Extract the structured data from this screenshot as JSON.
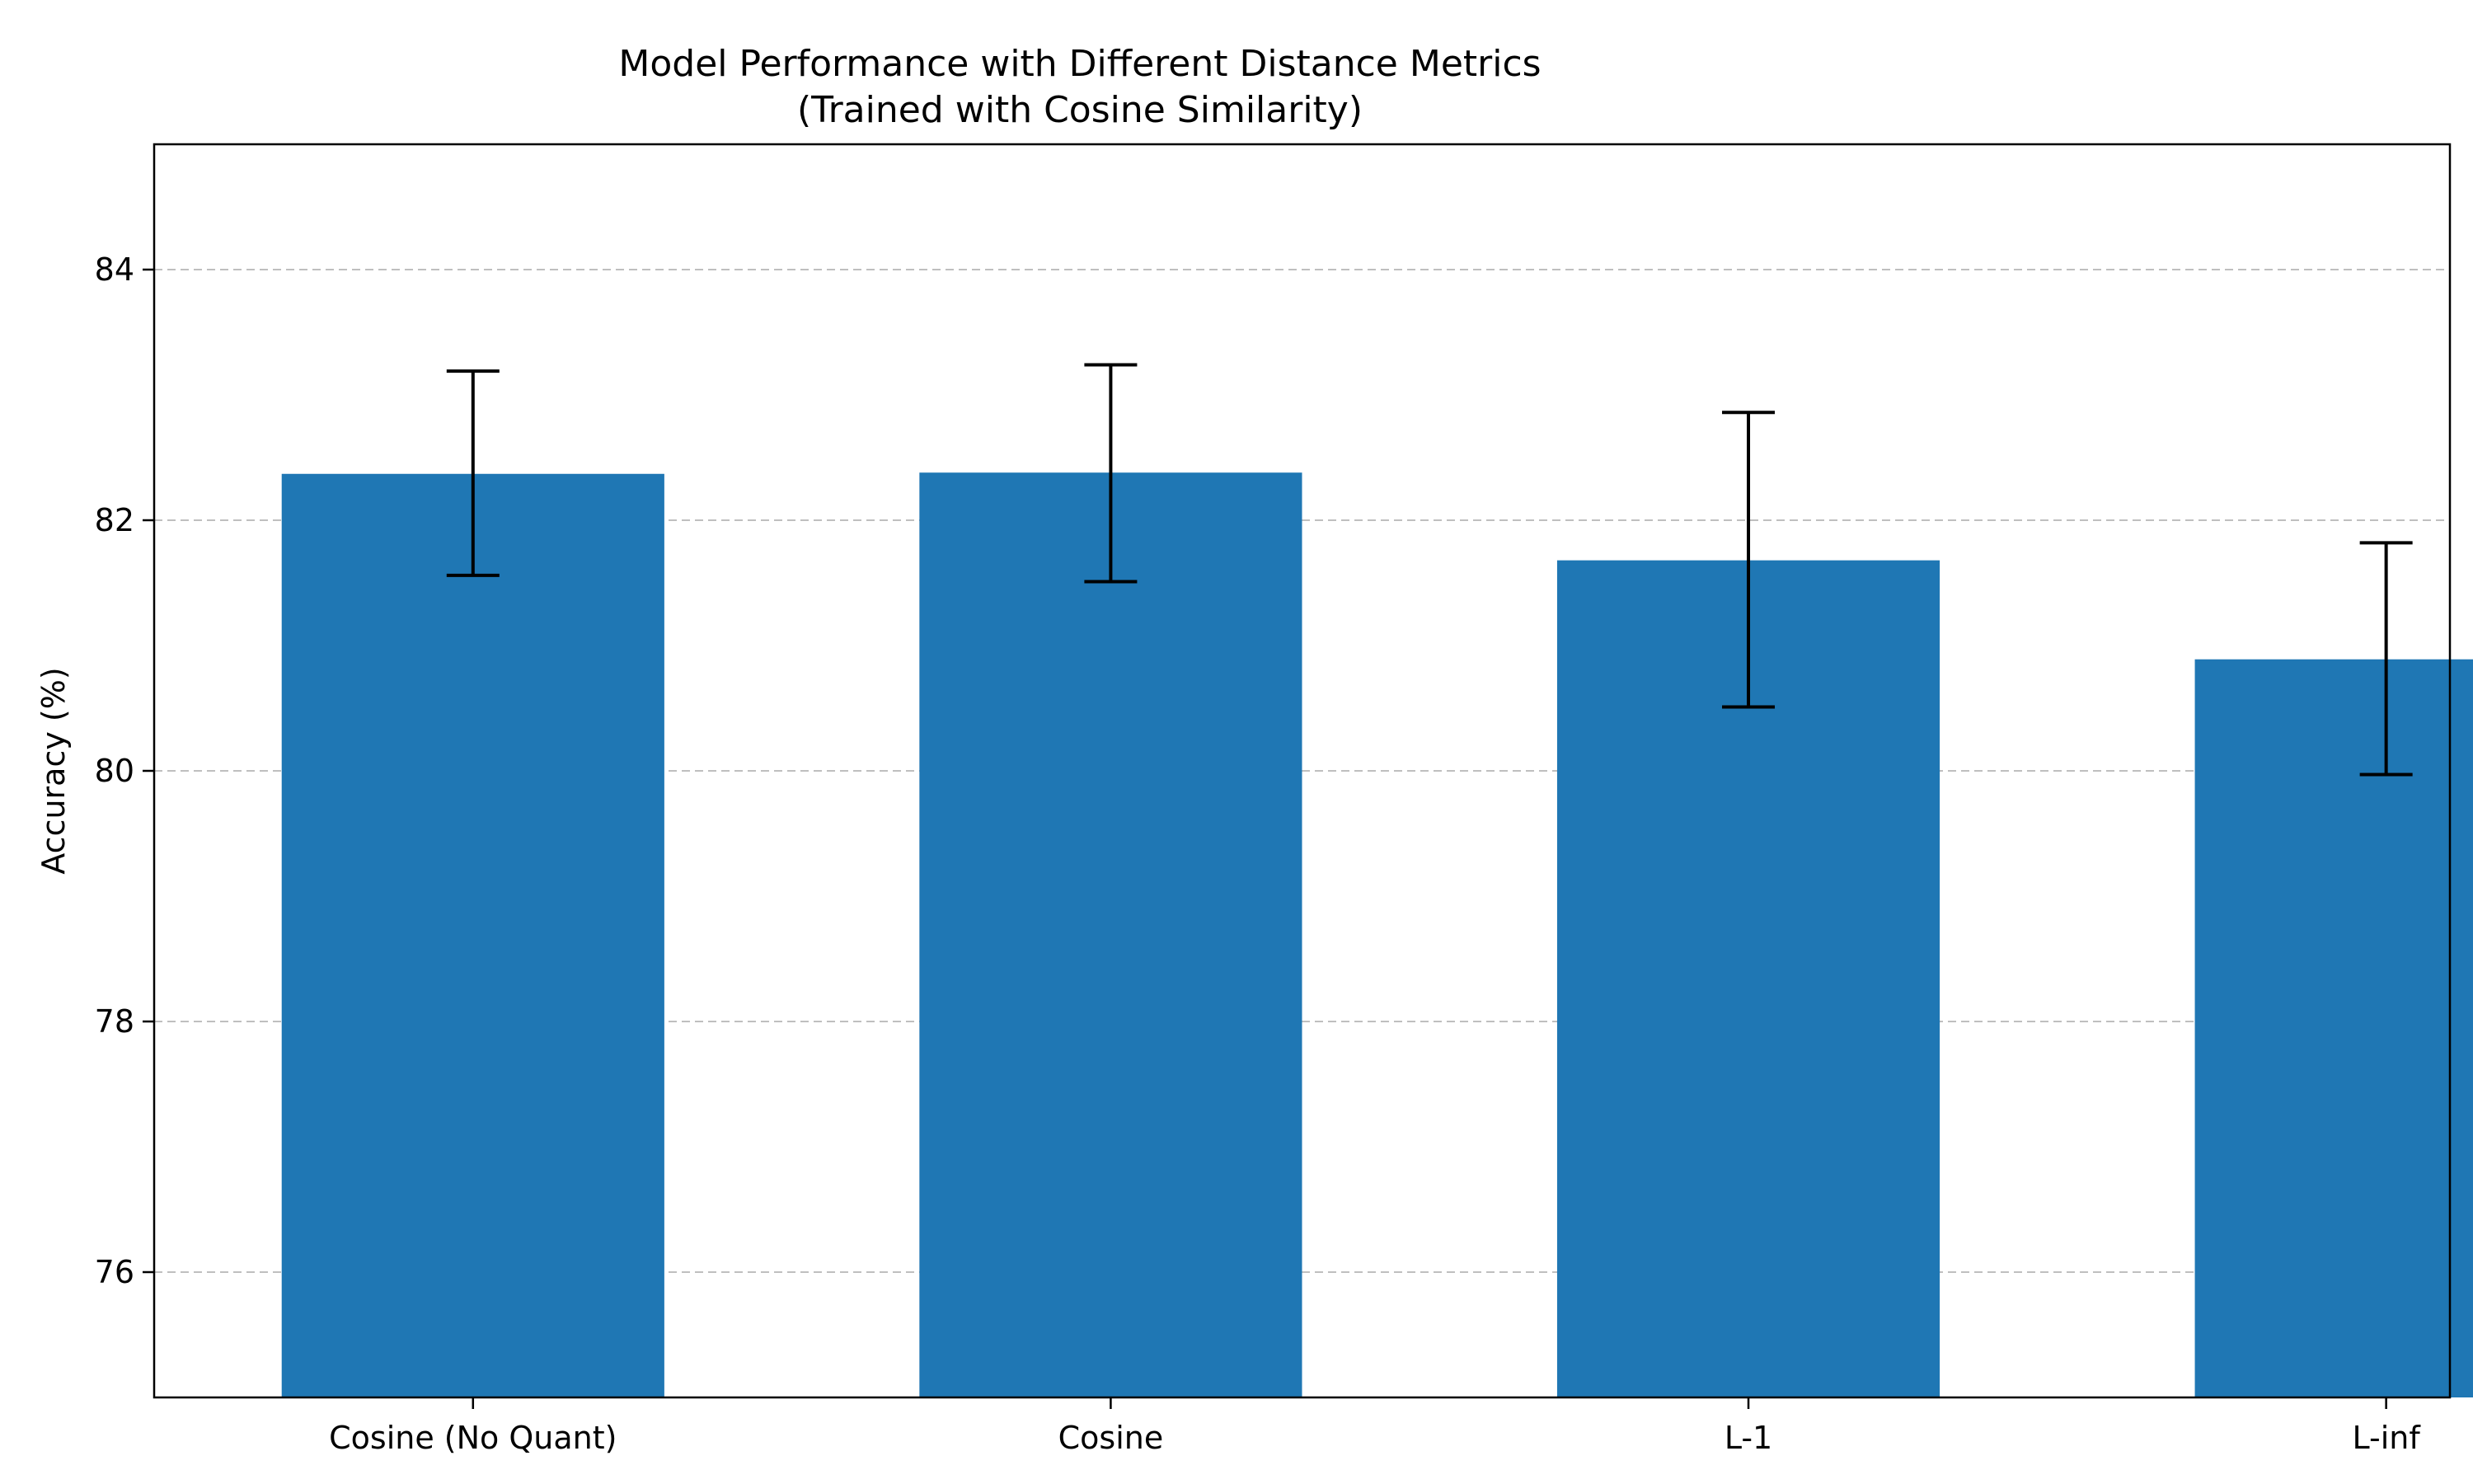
{
  "chart_data": {
    "type": "bar",
    "title": "Model Performance with Different Distance Metrics",
    "subtitle": "(Trained with Cosine Similarity)",
    "xlabel": "",
    "ylabel": "Accuracy (%)",
    "categories": [
      "Cosine (No Quant)",
      "Cosine",
      "L-1",
      "L-inf"
    ],
    "values": [
      82.37,
      82.38,
      81.68,
      80.89
    ],
    "error_low": [
      81.56,
      81.51,
      80.51,
      79.97
    ],
    "error_high": [
      83.19,
      83.24,
      82.86,
      81.82
    ],
    "ylim": [
      75,
      85
    ],
    "yticks": [
      76,
      78,
      80,
      82,
      84
    ],
    "grid": "horizontal dashed",
    "bar_color": "#1f77b4",
    "errorbar_color": "#000000",
    "gridline_color": "#bfbfbf"
  }
}
